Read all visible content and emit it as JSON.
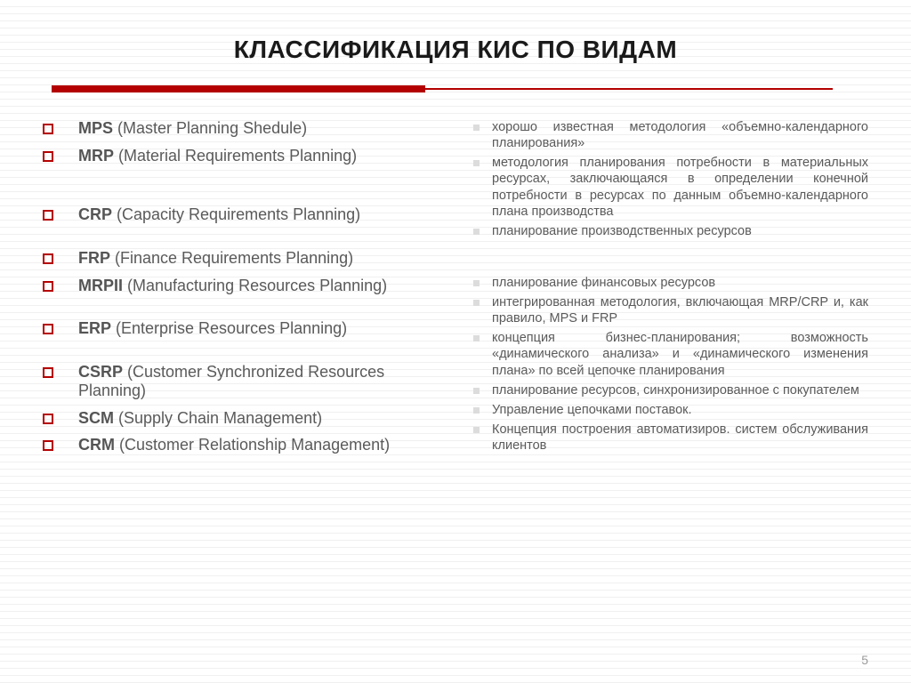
{
  "title": "КЛАССИФИКАЦИЯ КИС ПО ВИДАМ",
  "colors": {
    "accent": "#b40000",
    "text": "#5a5a5a",
    "right_bullet": "#dcdcdc",
    "background": "#ffffff",
    "hline": "#f0f0f0"
  },
  "fonts": {
    "family": "Verdana",
    "title_size_pt": 21,
    "left_size_pt": 13,
    "right_size_pt": 11
  },
  "left": [
    {
      "abbr": "MPS",
      "label": " (Master Planning Shedule)",
      "gap_after": 0
    },
    {
      "abbr": "MRP",
      "label": " (Material Requirements Planning)",
      "gap_after": 2
    },
    {
      "abbr": "CRP",
      "label": " (Capacity Requirements Planning)",
      "gap_after": 1
    },
    {
      "abbr": "FRP",
      "label": " (Finance Requirements Planning)",
      "gap_after": 0
    },
    {
      "abbr": "MRPII",
      "label": " (Manufacturing Resources Planning)",
      "gap_after": 1
    },
    {
      "abbr": "ERP",
      "label": " (Enterprise Resources Planning)",
      "gap_after": 1
    },
    {
      "abbr": "CSRP",
      "label": " (Customer Synchronized Resources Planning)",
      "gap_after": 0
    },
    {
      "abbr": "SCM",
      "label": " (Supply Chain Management)",
      "gap_after": 0
    },
    {
      "abbr": "CRM",
      "label": " (Customer Relationship Management)",
      "gap_after": 0
    }
  ],
  "right": [
    {
      "text": "хорошо известная методология «объемно-календарного планирования»",
      "gap_after": 0
    },
    {
      "text": "методология планирования потребности в материальных ресурсах, заключающаяся в определении конечной потребности в ресурсах по данным объемно-календарного плана производства",
      "gap_after": 0
    },
    {
      "text": "планирование производственных ресурсов",
      "gap_after": 2
    },
    {
      "text": "планирование финансовых ресурсов",
      "gap_after": 0
    },
    {
      "text": "интегрированная методология, включающая MRP/CRP и, как правило, MPS и FRP",
      "gap_after": 0
    },
    {
      "text": "концепция бизнес-планирования; возможность «динамического анализа» и «динамического изменения плана» по всей цепочке планирования",
      "gap_after": 0
    },
    {
      "text": "планирование ресурсов, синхронизированное с покупателем",
      "gap_after": 0
    },
    {
      "text": "Управление цепочками поставок.",
      "gap_after": 0
    },
    {
      "text": "Концепция построения автоматизиров. систем обслуживания клиентов",
      "gap_after": 0
    }
  ],
  "page_number": "5"
}
